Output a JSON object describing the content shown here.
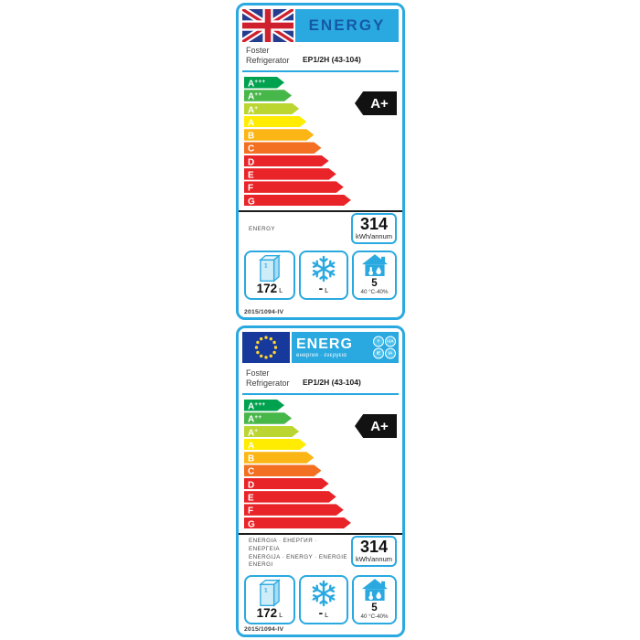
{
  "shared": {
    "scale": {
      "grades": [
        {
          "letter": "A",
          "sup": "+++"
        },
        {
          "letter": "A",
          "sup": "++"
        },
        {
          "letter": "A",
          "sup": "+"
        },
        {
          "letter": "A",
          "sup": ""
        },
        {
          "letter": "B",
          "sup": ""
        },
        {
          "letter": "C",
          "sup": ""
        },
        {
          "letter": "D",
          "sup": ""
        },
        {
          "letter": "E",
          "sup": ""
        },
        {
          "letter": "F",
          "sup": ""
        },
        {
          "letter": "G",
          "sup": ""
        }
      ],
      "colors": [
        "#00a24f",
        "#48b749",
        "#bcd631",
        "#ffec00",
        "#fbb615",
        "#f36f21",
        "#e92429",
        "#e92429",
        "#e92429",
        "#e92429"
      ]
    },
    "accent_color": "#2aa9e0",
    "rating_arrow_color": "#121212",
    "fridge_marker": "1"
  },
  "uk_label": {
    "header": {
      "title": "ENERGY"
    },
    "brand": {
      "line1": "Foster",
      "line2": "Refrigerator",
      "model": "EP1/2H (43-104)"
    },
    "rating": "A+",
    "energy_caption_lines": [
      "ENERGY"
    ],
    "consumption": {
      "value": "314",
      "unit": "kWh/annum"
    },
    "fridge_volume": {
      "value": "172",
      "unit": "L"
    },
    "freezer_volume": {
      "value": "-",
      "unit": "L"
    },
    "climate": {
      "class_value": "5",
      "condition": "40 °C-40%"
    },
    "regulation": "2015/1094-IV"
  },
  "eu_label": {
    "header": {
      "title": "ENERG",
      "subtitle": "енергия · ενεργεια",
      "suffixes": [
        "Y",
        "IJA",
        "IE",
        "IA"
      ]
    },
    "brand": {
      "line1": "Foster",
      "line2": "Refrigerator",
      "model": "EP1/2H (43-104)"
    },
    "rating": "A+",
    "energy_caption_lines": [
      "ENERGIA · ЕНЕРГИЯ · ΕΝΕΡΓΕΙΑ",
      "ENERGIJA · ENERGY · ENERGIE",
      "ENERGI"
    ],
    "consumption": {
      "value": "314",
      "unit": "kWh/annum"
    },
    "fridge_volume": {
      "value": "172",
      "unit": "L"
    },
    "freezer_volume": {
      "value": "-",
      "unit": "L"
    },
    "climate": {
      "class_value": "5",
      "condition": "40 °C-40%"
    },
    "regulation": "2015/1094-IV"
  }
}
